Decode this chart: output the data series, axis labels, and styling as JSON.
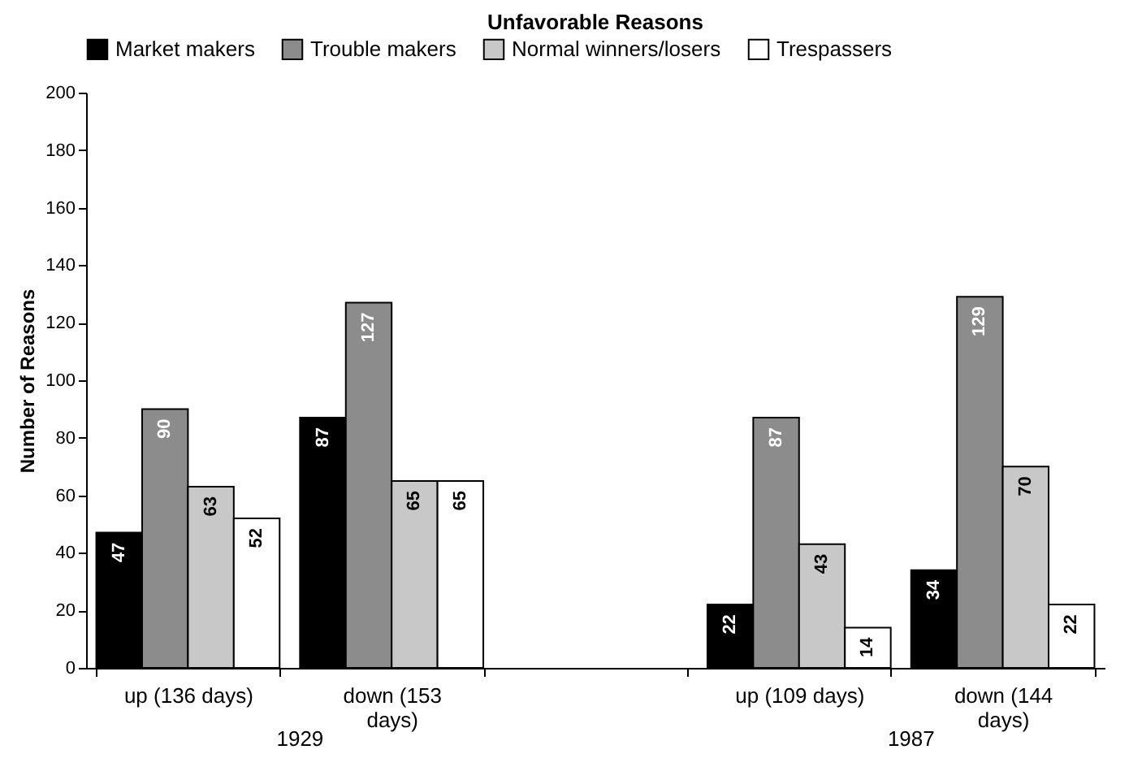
{
  "chart_data": {
    "type": "bar",
    "title": "Unfavorable Reasons",
    "ylabel": "Number of Reasons",
    "categories": [
      "up (136 days)",
      "down (153 days)",
      null,
      "up (109 days)",
      "down (144 days)"
    ],
    "series": [
      {
        "name": "Market makers",
        "color": "#000000",
        "values": [
          47,
          87,
          null,
          22,
          34
        ]
      },
      {
        "name": "Trouble makers",
        "color": "#8c8c8c",
        "values": [
          90,
          127,
          null,
          87,
          129
        ]
      },
      {
        "name": "Normal winners/losers",
        "color": "#c8c8c8",
        "values": [
          63,
          65,
          null,
          43,
          70
        ]
      },
      {
        "name": "Trespassers",
        "color": "#ffffff",
        "values": [
          52,
          65,
          null,
          14,
          22
        ]
      }
    ],
    "ylim": [
      0,
      200
    ],
    "yticks": [
      0,
      20,
      40,
      60,
      80,
      100,
      120,
      140,
      160,
      180,
      200
    ],
    "data_labels": true,
    "legend": "top",
    "grid": false,
    "annotations": [
      "1929",
      "1987"
    ]
  }
}
